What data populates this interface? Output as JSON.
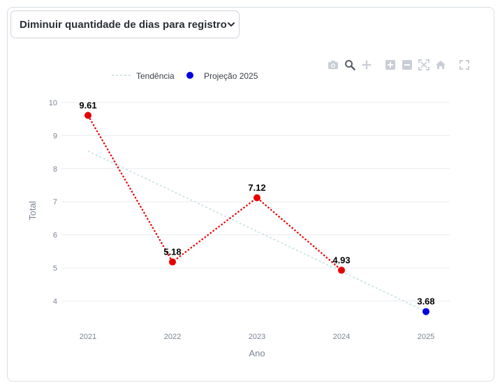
{
  "selector": {
    "label": "Diminuir quantidade de dias para registro",
    "icon": "chevron-down-icon"
  },
  "legend": {
    "trend_label": "Tendência",
    "projection_label": "Projeção 2025"
  },
  "toolbar": {
    "buttons": [
      {
        "name": "camera-icon",
        "title": "Download plot as a png"
      },
      {
        "name": "zoom-icon",
        "title": "Zoom"
      },
      {
        "name": "pan-icon",
        "title": "Pan"
      },
      {
        "name": "zoom-in-icon",
        "title": "Zoom in"
      },
      {
        "name": "zoom-out-icon",
        "title": "Zoom out"
      },
      {
        "name": "autoscale-icon",
        "title": "Autoscale"
      },
      {
        "name": "home-icon",
        "title": "Reset axes"
      },
      {
        "name": "fullscreen-icon",
        "title": "Fullscreen"
      }
    ],
    "active": "zoom-icon"
  },
  "colors": {
    "actual": "#e60000",
    "projection": "#0000e0",
    "trend": "#cfe6e6",
    "grid": "#e9ecef",
    "axis_text": "#7b8494",
    "label_text": "#000000"
  },
  "chart_data": {
    "type": "line",
    "xlabel": "Ano",
    "ylabel": "Total",
    "categories": [
      "2021",
      "2022",
      "2023",
      "2024",
      "2025"
    ],
    "ylim": [
      3.4,
      10.25
    ],
    "yticks": [
      4,
      5,
      6,
      7,
      8,
      9,
      10
    ],
    "grid": true,
    "legend_position": "top-left",
    "series": [
      {
        "kind": "actual",
        "x": [
          "2021",
          "2022",
          "2023",
          "2024"
        ],
        "values": [
          9.61,
          5.18,
          7.12,
          4.93
        ],
        "labels": [
          "9.61",
          "5.18",
          "7.12",
          "4.93"
        ],
        "style": "dotted-markers"
      },
      {
        "name": "Projeção 2025",
        "kind": "projection",
        "x": [
          "2025"
        ],
        "values": [
          3.68
        ],
        "labels": [
          "3.68"
        ],
        "style": "marker"
      },
      {
        "name": "Tendência",
        "kind": "trend",
        "x": [
          "2021",
          "2025"
        ],
        "values": [
          8.53,
          3.68
        ],
        "style": "dotted-line"
      }
    ]
  }
}
